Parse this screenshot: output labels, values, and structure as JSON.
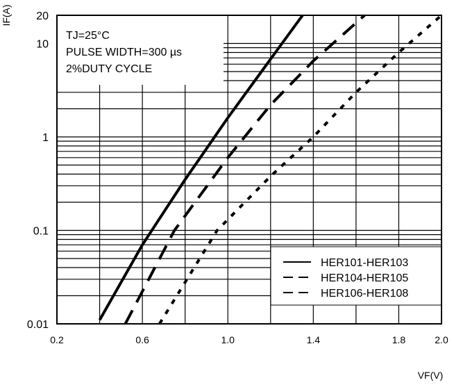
{
  "chart_data": {
    "type": "line",
    "xlabel": "VF(V)",
    "ylabel": "IF(A)",
    "x_scale": "linear",
    "y_scale": "log",
    "xlim": [
      0.2,
      2.0
    ],
    "ylim": [
      0.01,
      20
    ],
    "x_ticks": [
      "0.2",
      "0.6",
      "1.0",
      "1.4",
      "1.8",
      "2.0"
    ],
    "y_ticks": [
      "0.01",
      "0.1",
      "1",
      "10",
      "20"
    ],
    "grid": true,
    "annotation": [
      "TJ=25°C",
      "PULSE WIDTH=300 µs",
      "2%DUTY CYCLE"
    ],
    "legend_position": "bottom-right",
    "series": [
      {
        "name": "HER101-HER103",
        "style": "solid",
        "points": [
          [
            0.4,
            0.011
          ],
          [
            0.6,
            0.07
          ],
          [
            0.8,
            0.35
          ],
          [
            1.0,
            1.6
          ],
          [
            1.2,
            6.8
          ],
          [
            1.35,
            20
          ]
        ]
      },
      {
        "name": "HER104-HER105",
        "style": "dashed",
        "points": [
          [
            0.52,
            0.01
          ],
          [
            0.75,
            0.1
          ],
          [
            1.0,
            0.6
          ],
          [
            1.2,
            2.2
          ],
          [
            1.4,
            6.5
          ],
          [
            1.64,
            20
          ]
        ]
      },
      {
        "name": "HER106-HER108",
        "style": "dotted",
        "points": [
          [
            0.68,
            0.01
          ],
          [
            0.95,
            0.1
          ],
          [
            1.2,
            0.38
          ],
          [
            1.4,
            1.0
          ],
          [
            1.6,
            3.0
          ],
          [
            1.8,
            8.0
          ],
          [
            2.0,
            20
          ]
        ]
      }
    ]
  }
}
